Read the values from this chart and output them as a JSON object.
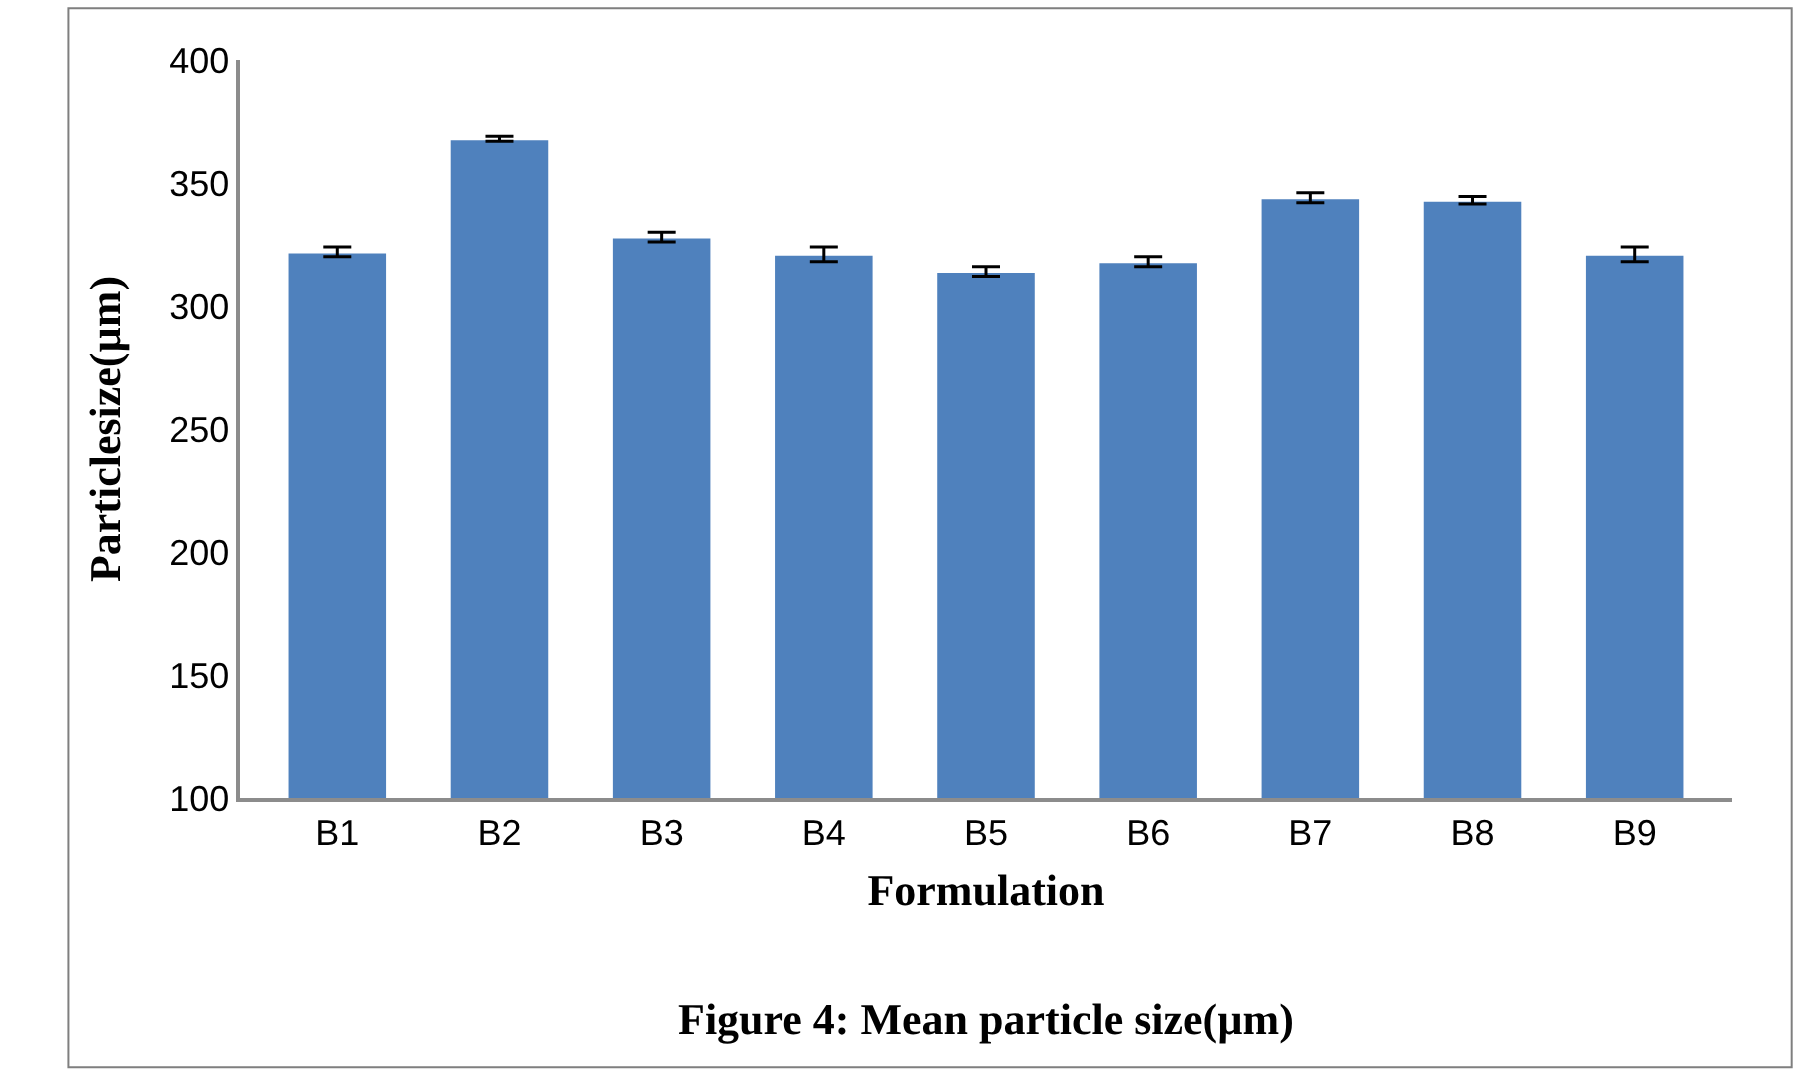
{
  "chart_data": {
    "type": "bar",
    "xlabel": "Formulation",
    "ylabel": "Particlesize(µm)",
    "annotations": [
      "Figure 4: Mean particle size(µm)"
    ],
    "categories": [
      "B1",
      "B2",
      "B3",
      "B4",
      "B5",
      "B6",
      "B7",
      "B8",
      "B9"
    ],
    "values": [
      322,
      368,
      328,
      321,
      314,
      318,
      344,
      343,
      321
    ],
    "errors": [
      2,
      1,
      2,
      3,
      2,
      2,
      2,
      1.5,
      3
    ],
    "color": "#4f81bd",
    "ylim": [
      100,
      400
    ],
    "yticks": [
      100,
      150,
      200,
      250,
      300,
      350,
      400
    ],
    "grid": false
  }
}
